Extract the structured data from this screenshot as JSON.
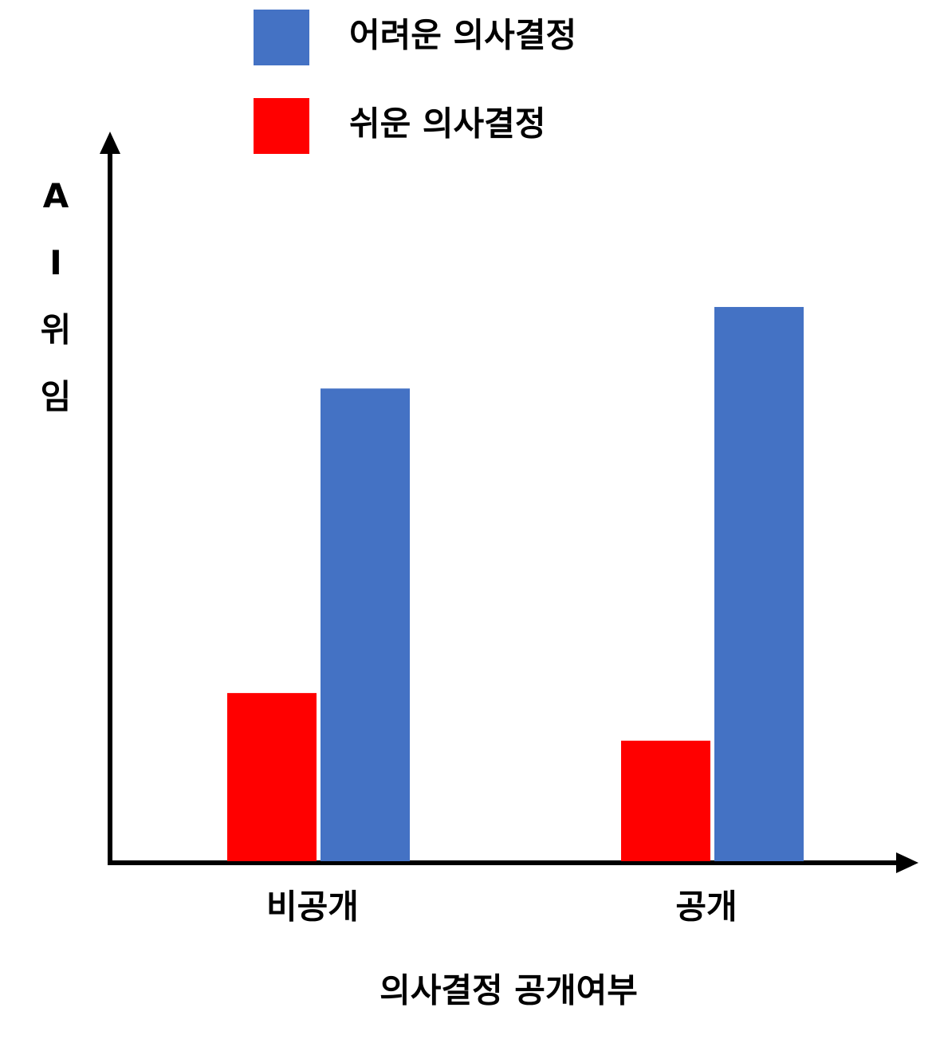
{
  "chart_data": {
    "type": "bar",
    "x_label": "의사결정 공개여부",
    "y_label": "AI위임",
    "categories": [
      "비공개",
      "공개"
    ],
    "series": [
      {
        "name": "쉬운 의사결정",
        "color": "#ff0000",
        "values": [
          23.3,
          16.7
        ]
      },
      {
        "name": "어려운 의사결정",
        "color": "#4472c4",
        "values": [
          65.5,
          76.8
        ]
      }
    ],
    "ylim": [
      0,
      100
    ]
  }
}
